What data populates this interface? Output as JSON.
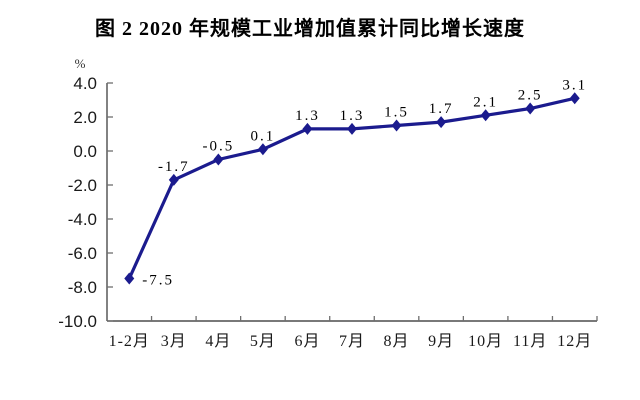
{
  "title": "图 2  2020 年规模工业增加值累计同比增长速度",
  "chart_data": {
    "type": "line",
    "title": "图 2  2020 年规模工业增加值累计同比增长速度",
    "unit_label": "%",
    "categories": [
      "1-2月",
      "3月",
      "4月",
      "5月",
      "6月",
      "7月",
      "8月",
      "9月",
      "10月",
      "11月",
      "12月"
    ],
    "series": [
      {
        "name": "规模工业增加值累计同比增长速度",
        "values": [
          -7.5,
          -1.7,
          -0.5,
          0.1,
          1.3,
          1.3,
          1.5,
          1.7,
          2.1,
          2.5,
          3.1
        ],
        "data_labels": [
          "-7.5",
          "-1.7",
          "-0.5",
          "0.1",
          "1.3",
          "1.3",
          "1.5",
          "1.7",
          "2.1",
          "2.5",
          "3.1"
        ],
        "label_positions": [
          "right",
          "above",
          "above",
          "above",
          "above",
          "above",
          "above",
          "above",
          "above",
          "above",
          "above"
        ]
      }
    ],
    "xlabel": "",
    "ylabel": "%",
    "ylim": [
      -10.0,
      4.0
    ],
    "y_tick_labels": [
      "4.0",
      "2.0",
      "0.0",
      "-2.0",
      "-4.0",
      "-6.0",
      "-8.0",
      "-10.0"
    ],
    "y_tick_values": [
      4.0,
      2.0,
      0.0,
      -2.0,
      -4.0,
      -6.0,
      -8.0,
      -10.0
    ],
    "grid": "off",
    "legend": "none",
    "marker": "diamond",
    "line_color": "#1b1b8e",
    "axis_color": "#4d4d4d",
    "tick_color": "#6e6e6e",
    "text_color": "#000000",
    "background_color": "#ffffff"
  }
}
